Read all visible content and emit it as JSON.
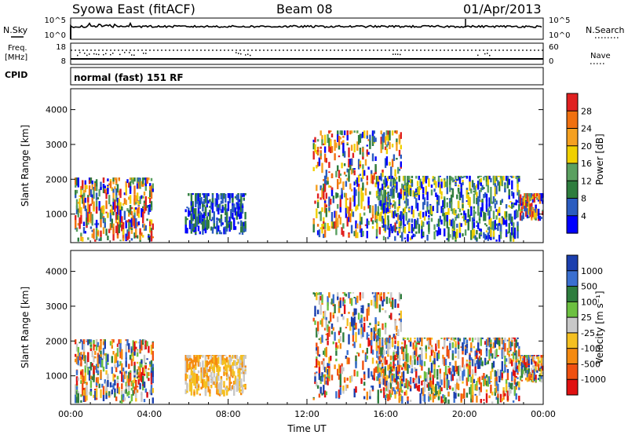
{
  "header": {
    "station": "Syowa East (fitACF)",
    "beam": "Beam 08",
    "date": "01/Apr/2013"
  },
  "status": {
    "nsky_label": "N.Sky",
    "nsky_ticks": [
      "10^5",
      "10^0"
    ],
    "nsearch_label": "N.Search",
    "nsearch_ticks": [
      "10^5",
      "10^0"
    ],
    "freq_label_1": "Freq.",
    "freq_label_2": "[MHz]",
    "freq_ticks": [
      "18",
      "8"
    ],
    "nave_label": "Nave",
    "nave_ticks": [
      "60",
      "0"
    ],
    "cpid_label": "CPID",
    "cpid_text": "normal (fast) 151 RF"
  },
  "chart_data": [
    {
      "type": "heatmap",
      "quantity": "power",
      "ylabel": "Slant Range [km]",
      "xlabel": "",
      "x_ticks": [],
      "y_ticks": [
        "1000",
        "2000",
        "3000",
        "4000"
      ],
      "ylim": [
        180,
        4600
      ],
      "colorbar": {
        "label": "Power [dB]",
        "ticks": [
          "4",
          "8",
          "12",
          "16",
          "20",
          "24",
          "28"
        ],
        "colors": [
          "#0000ff",
          "#2b5cc0",
          "#2e7d3e",
          "#5aa060",
          "#f0d000",
          "#f5a020",
          "#f07010",
          "#e02020"
        ]
      },
      "echo_regions": [
        {
          "t": [
            0.2,
            4.2
          ],
          "r": [
            200,
            2050
          ],
          "level": "mixed"
        },
        {
          "t": [
            5.8,
            8.9
          ],
          "r": [
            400,
            1600
          ],
          "level": "low"
        },
        {
          "t": [
            12.3,
            16.8
          ],
          "r": [
            300,
            3400
          ],
          "level": "mixed"
        },
        {
          "t": [
            15.5,
            22.8
          ],
          "r": [
            200,
            2100
          ],
          "level": "low-mixed"
        },
        {
          "t": [
            22.8,
            24.0
          ],
          "r": [
            800,
            1600
          ],
          "level": "mixed"
        }
      ]
    },
    {
      "type": "heatmap",
      "quantity": "velocity",
      "ylabel": "Slant Range [km]",
      "xlabel": "Time UT",
      "x_ticks": [
        "00:00",
        "04:00",
        "08:00",
        "12:00",
        "16:00",
        "20:00",
        "00:00"
      ],
      "y_ticks": [
        "1000",
        "2000",
        "3000",
        "4000"
      ],
      "ylim": [
        180,
        4600
      ],
      "colorbar": {
        "label": "Velocity [m s⁻¹]",
        "ticks": [
          "1000",
          "500",
          "100",
          "25",
          "-25",
          "-100",
          "-500",
          "-1000"
        ],
        "colors": [
          "#1b3fae",
          "#3a6fd0",
          "#2e7d3e",
          "#6cc040",
          "#c8c8c8",
          "#f5c020",
          "#f58a10",
          "#f05010",
          "#e01010"
        ]
      },
      "echo_regions": [
        {
          "t": [
            0.2,
            4.2
          ],
          "r": [
            200,
            2050
          ],
          "level": "mixed"
        },
        {
          "t": [
            5.8,
            8.9
          ],
          "r": [
            400,
            1600
          ],
          "level": "away"
        },
        {
          "t": [
            12.3,
            16.8
          ],
          "r": [
            300,
            3400
          ],
          "level": "mixed"
        },
        {
          "t": [
            15.5,
            22.8
          ],
          "r": [
            200,
            2100
          ],
          "level": "mixed"
        },
        {
          "t": [
            22.8,
            24.0
          ],
          "r": [
            800,
            1600
          ],
          "level": "mixed"
        }
      ]
    }
  ]
}
